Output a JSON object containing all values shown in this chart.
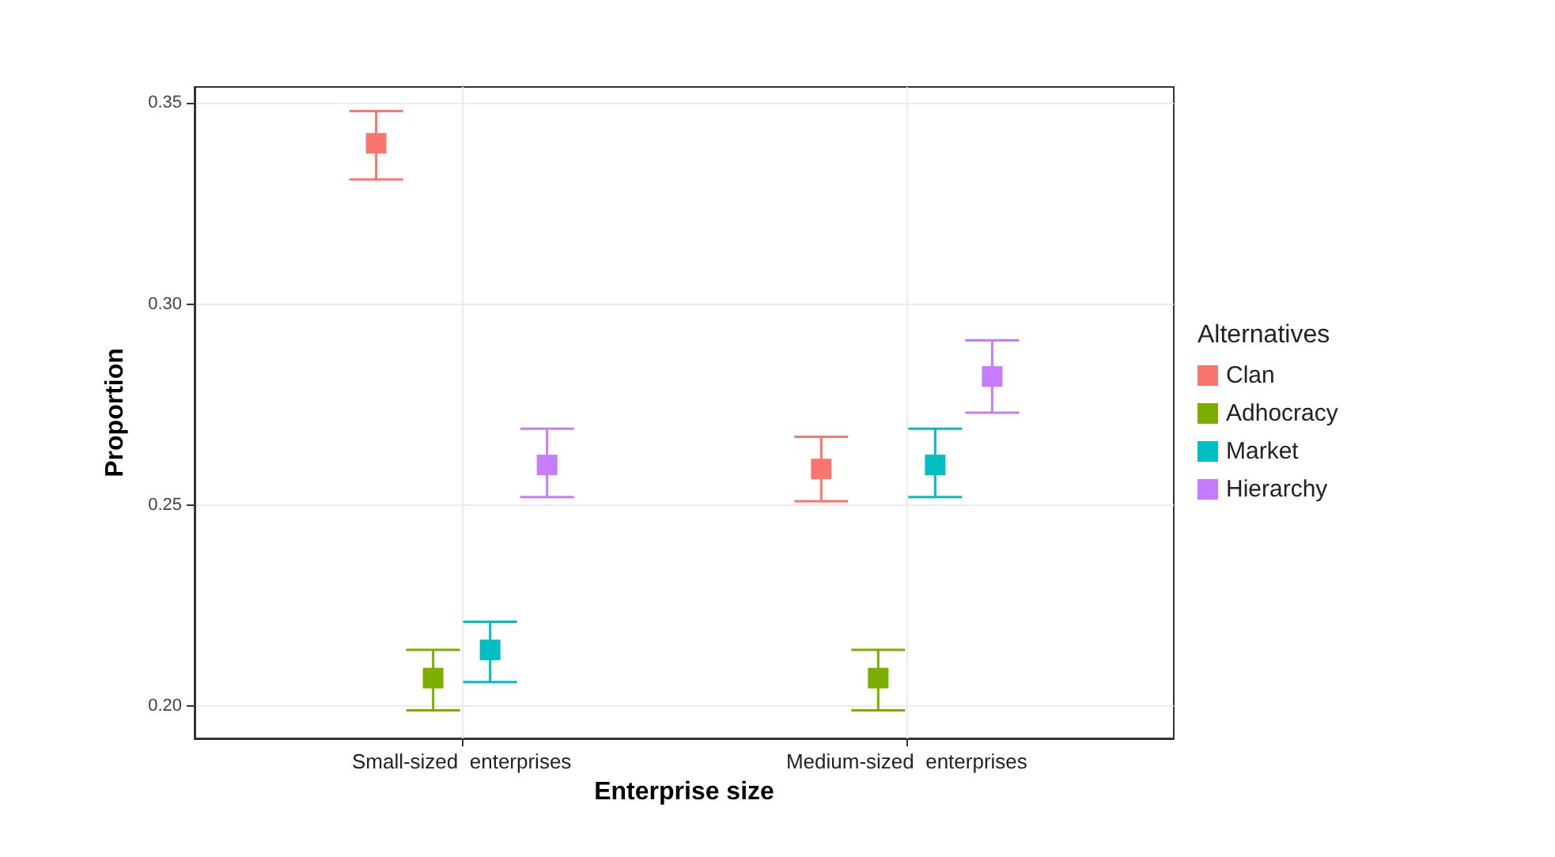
{
  "chart_data": {
    "type": "scatter",
    "xlabel": "Enterprise size",
    "ylabel": "Proportion",
    "legend_title": "Alternatives",
    "categories": [
      "Small-sized  enterprises",
      "Medium-sized  enterprises"
    ],
    "series": [
      {
        "name": "Clan",
        "color": "#f8766d",
        "values": [
          0.34,
          0.259
        ],
        "errors": [
          [
            0.331,
            0.348
          ],
          [
            0.251,
            0.267
          ]
        ]
      },
      {
        "name": "Adhocracy",
        "color": "#7cae00",
        "values": [
          0.207,
          0.207
        ],
        "errors": [
          [
            0.199,
            0.214
          ],
          [
            0.199,
            0.214
          ]
        ]
      },
      {
        "name": "Market",
        "color": "#00bfc4",
        "values": [
          0.214,
          0.26
        ],
        "errors": [
          [
            0.206,
            0.221
          ],
          [
            0.252,
            0.269
          ]
        ]
      },
      {
        "name": "Hierarchy",
        "color": "#c77cff",
        "values": [
          0.26,
          0.282
        ],
        "errors": [
          [
            0.252,
            0.269
          ],
          [
            0.273,
            0.291
          ]
        ]
      }
    ],
    "ylim": [
      0.192,
      0.354
    ],
    "yticks": [
      {
        "value": 0.2,
        "label": "0.20"
      },
      {
        "value": 0.25,
        "label": "0.25"
      },
      {
        "value": 0.3,
        "label": "0.30"
      },
      {
        "value": 0.35,
        "label": "0.35"
      }
    ],
    "grid": true,
    "legend": "right",
    "marker": "square"
  }
}
